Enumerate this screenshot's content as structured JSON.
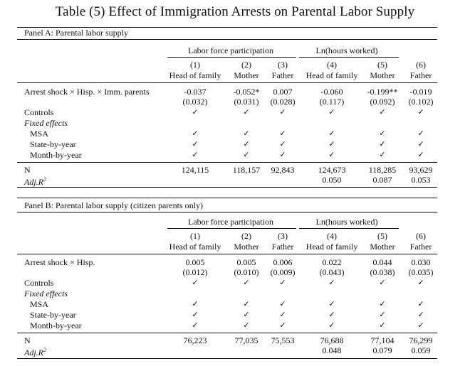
{
  "title": "Table (5)   Effect of Immigration Arrests on Parental Labor Supply",
  "group_headers": {
    "lfp": "Labor force participation",
    "hours": "Ln(hours worked)"
  },
  "columns": [
    {
      "num": "(1)",
      "label": "Head of family"
    },
    {
      "num": "(2)",
      "label": "Mother"
    },
    {
      "num": "(3)",
      "label": "Father"
    },
    {
      "num": "(4)",
      "label": "Head of family"
    },
    {
      "num": "(5)",
      "label": "Mother"
    },
    {
      "num": "(6)",
      "label": "Father"
    }
  ],
  "row_labels": {
    "controls": "Controls",
    "fixed_effects": "Fixed effects",
    "msa": "MSA",
    "state_year": "State-by-year",
    "month_year": "Month-by-year",
    "n": "N",
    "adj_r2": "Adj.R",
    "adj_r2_sup": "2"
  },
  "check": "✓",
  "panel_a": {
    "title": "Panel A: Parental labor supply",
    "main_label": "Arrest shock × Hisp. × Imm. parents",
    "coef": [
      "-0.037",
      "-0.052*",
      "0.007",
      "-0.060",
      "-0.199**",
      "-0.019"
    ],
    "se": [
      "(0.032)",
      "(0.031)",
      "(0.028)",
      "(0.117)",
      "(0.092)",
      "(0.102)"
    ],
    "n": [
      "124,115",
      "118,157",
      "92,843",
      "124,673",
      "118,285",
      "93,629"
    ],
    "r2": [
      "",
      "",
      "",
      "0.050",
      "0.087",
      "0.053"
    ]
  },
  "panel_b": {
    "title": "Panel B: Parental labor supply (citizen parents only)",
    "main_label": "Arrest shock × Hisp.",
    "coef": [
      "0.005",
      "0.005",
      "0.006",
      "0.022",
      "0.044",
      "0.030"
    ],
    "se": [
      "(0.012)",
      "(0.010)",
      "(0.009)",
      "(0.043)",
      "(0.038)",
      "(0.035)"
    ],
    "n": [
      "76,223",
      "77,035",
      "75,553",
      "76,688",
      "77,104",
      "76,299"
    ],
    "r2": [
      "",
      "",
      "",
      "0.048",
      "0.079",
      "0.059"
    ]
  }
}
